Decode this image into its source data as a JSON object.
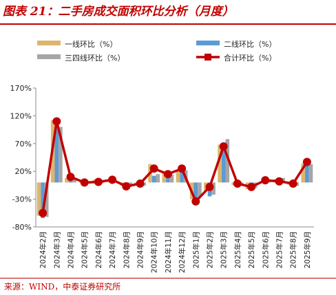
{
  "figure": {
    "title": "图表 21：二手房成交面积环比分析（月度）",
    "source": "来源：WIND，中泰证券研究所"
  },
  "colors": {
    "tier1": "#ddb66c",
    "tier2": "#5b9bd5",
    "tier34": "#a6a6a6",
    "total": "#c00000",
    "brand_red": "#c00000"
  },
  "chart_data": {
    "type": "bar",
    "title": "",
    "xlabel": "",
    "ylabel": "",
    "ylim": [
      -80,
      170
    ],
    "yticks": [
      -80,
      -30,
      20,
      70,
      120,
      170
    ],
    "ytick_labels": [
      "-80%",
      "-30%",
      "20%",
      "70%",
      "120%",
      "170%"
    ],
    "grid": false,
    "legend": "top",
    "categories": [
      "2024年2月",
      "2024年3月",
      "2024年4月",
      "2024年5月",
      "2024年6月",
      "2024年7月",
      "2024年8月",
      "2024年9月",
      "2024年10月",
      "2024年11月",
      "2024年12月",
      "2025年1月",
      "2025年2月",
      "2025年3月",
      "2025年4月",
      "2025年5月",
      "2025年6月",
      "2025年7月",
      "2025年8月",
      "2025年9月"
    ],
    "series": [
      {
        "name": "一线环比（%）",
        "type": "bar",
        "values": [
          -60,
          112,
          8,
          1,
          5,
          4,
          -6,
          -3,
          33,
          20,
          22,
          -30,
          -15,
          68,
          -5,
          -12,
          2,
          6,
          -4,
          34
        ]
      },
      {
        "name": "二线环比（%）",
        "type": "bar",
        "values": [
          -64,
          98,
          5,
          -3,
          -2,
          0,
          -10,
          -8,
          12,
          10,
          20,
          -38,
          -25,
          58,
          -8,
          -14,
          -1,
          2,
          -8,
          30
        ]
      },
      {
        "name": "三四线环比（%）",
        "type": "bar",
        "values": [
          -62,
          100,
          6,
          -2,
          0,
          2,
          -8,
          -6,
          15,
          14,
          22,
          -26,
          -22,
          78,
          -4,
          -10,
          3,
          8,
          -6,
          33
        ]
      },
      {
        "name": "合计环比（%）",
        "type": "line",
        "values": [
          -55,
          110,
          10,
          0,
          1,
          5,
          -7,
          -2,
          25,
          15,
          25,
          -34,
          -8,
          65,
          -2,
          -8,
          4,
          2,
          -2,
          37
        ]
      }
    ]
  }
}
